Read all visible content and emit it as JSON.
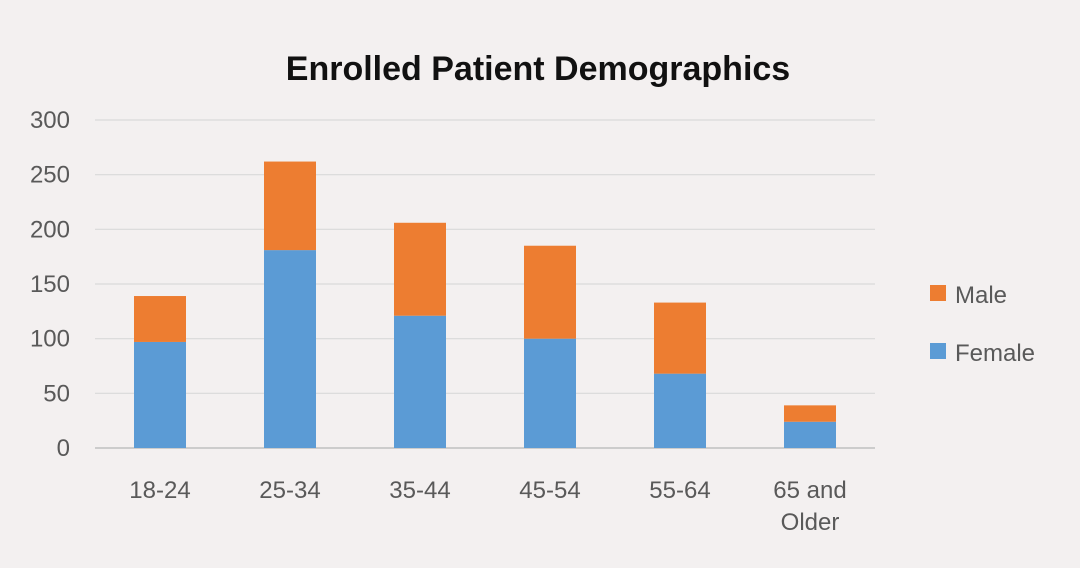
{
  "chart_data": {
    "type": "bar",
    "stacked": true,
    "title": "Enrolled Patient Demographics",
    "xlabel": "",
    "ylabel": "",
    "categories": [
      "18-24",
      "25-34",
      "35-44",
      "45-54",
      "55-64",
      "65 and Older"
    ],
    "category_lines": [
      [
        "18-24"
      ],
      [
        "25-34"
      ],
      [
        "35-44"
      ],
      [
        "45-54"
      ],
      [
        "55-64"
      ],
      [
        "65 and",
        "Older"
      ]
    ],
    "series": [
      {
        "name": "Female",
        "color": "#5b9bd5",
        "values": [
          97,
          181,
          121,
          100,
          68,
          24
        ]
      },
      {
        "name": "Male",
        "color": "#ed7d31",
        "values": [
          42,
          81,
          85,
          85,
          65,
          15
        ]
      }
    ],
    "legend_order": [
      "Male",
      "Female"
    ],
    "legend_position": "right",
    "ylim": [
      0,
      300
    ],
    "yticks": [
      0,
      50,
      100,
      150,
      200,
      250,
      300
    ],
    "grid": true,
    "colors": {
      "background": "#f3f0f0",
      "grid": "#d9d9d9",
      "axis": "#bfbfbf",
      "text": "#595959"
    }
  }
}
